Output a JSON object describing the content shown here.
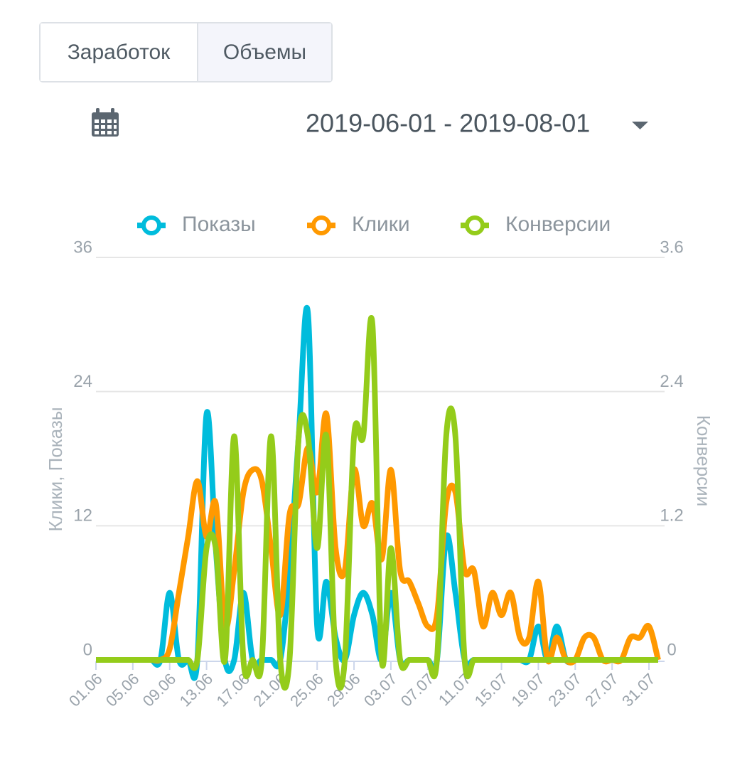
{
  "tabs": [
    "Заработок",
    "Объемы"
  ],
  "active_tab": 1,
  "date_range": "2019-06-01 - 2019-08-01",
  "chart_data": {
    "type": "line",
    "categories": [
      "01.06",
      null,
      null,
      null,
      "05.06",
      null,
      null,
      null,
      "09.06",
      null,
      null,
      null,
      "13.06",
      null,
      null,
      null,
      "17.06",
      null,
      null,
      null,
      "21.06",
      null,
      null,
      null,
      "25.06",
      null,
      null,
      null,
      "29.06",
      null,
      null,
      null,
      "03.07",
      null,
      null,
      null,
      "07.07",
      null,
      null,
      null,
      "11.07",
      null,
      null,
      null,
      "15.07",
      null,
      null,
      null,
      "19.07",
      null,
      null,
      null,
      "23.07",
      null,
      null,
      null,
      "27.07",
      null,
      null,
      null,
      "31.07",
      null
    ],
    "series": [
      {
        "name": "Показы",
        "color": "#00bcdc",
        "values": [
          0,
          0,
          0,
          0,
          0,
          0,
          0,
          0,
          6,
          0,
          0,
          0,
          22,
          10,
          0,
          0,
          6,
          0,
          0,
          0,
          0,
          8,
          20,
          31,
          3,
          7,
          2,
          0,
          4,
          6,
          4,
          0,
          6,
          0,
          0,
          0,
          0,
          0,
          11,
          6,
          0,
          0,
          0,
          0,
          0,
          0,
          0,
          0,
          3,
          0,
          3,
          0,
          0,
          0,
          0,
          0,
          0,
          0,
          0,
          0,
          0,
          0
        ]
      },
      {
        "name": "Клики",
        "color": "#ff9900",
        "values": [
          0,
          0,
          0,
          0,
          0,
          0,
          0,
          0,
          1,
          6,
          11,
          16,
          11,
          14,
          3,
          8,
          15,
          17,
          16,
          10,
          4,
          13,
          14,
          19,
          15,
          22,
          10,
          8,
          17,
          12,
          14,
          9,
          17,
          8,
          7,
          5,
          3,
          4,
          14,
          15,
          8,
          8,
          3,
          6,
          4,
          6,
          2,
          2,
          7,
          0,
          2,
          0,
          0,
          2,
          2,
          0,
          0,
          0,
          2,
          2,
          3,
          0
        ]
      },
      {
        "name": "Конверсии",
        "color": "#94cc1a",
        "axis": "y2",
        "values": [
          0,
          0,
          0,
          0,
          0,
          0,
          0,
          0,
          0,
          0,
          0,
          0,
          1,
          1,
          0,
          2,
          0,
          0,
          0,
          2,
          0,
          0,
          2,
          2,
          1,
          2,
          0,
          0,
          2,
          2,
          3,
          0,
          1,
          0,
          0,
          0,
          0,
          0,
          2,
          2,
          0,
          0,
          0,
          0,
          0,
          0,
          0,
          0,
          0,
          0,
          0,
          0,
          0,
          0,
          0,
          0,
          0,
          0,
          0,
          0,
          0,
          0
        ]
      }
    ],
    "ylim": [
      0,
      36
    ],
    "yticks": [
      0,
      12,
      24,
      36
    ],
    "y2lim": [
      0,
      3.6
    ],
    "y2ticks": [
      0,
      1.2,
      2.4,
      3.6
    ],
    "ylabel": "Клики, Показы",
    "y2label": "Конверсии",
    "grid": true,
    "legend": "top"
  }
}
